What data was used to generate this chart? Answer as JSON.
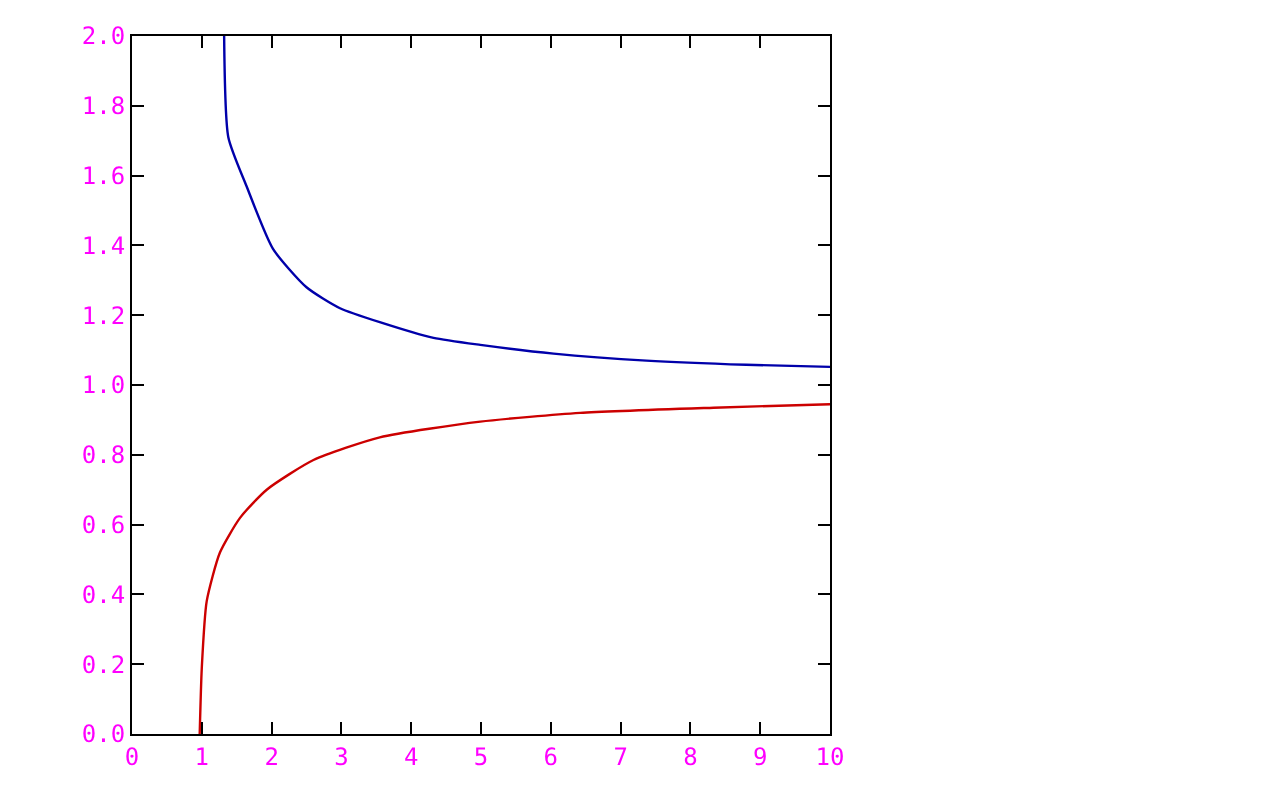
{
  "chart_data": {
    "type": "line",
    "xlim": [
      0,
      10
    ],
    "ylim": [
      0,
      2
    ],
    "xticks": [
      0,
      1,
      2,
      3,
      4,
      5,
      6,
      7,
      8,
      9,
      10
    ],
    "yticks": [
      {
        "value": 0,
        "label": "0.0"
      },
      {
        "value": 0.2,
        "label": "0.2"
      },
      {
        "value": 0.4,
        "label": "0.4"
      },
      {
        "value": 0.6,
        "label": "0.6"
      },
      {
        "value": 0.8,
        "label": "0.8"
      },
      {
        "value": 1,
        "label": "1.0"
      },
      {
        "value": 1.2,
        "label": "1.2"
      },
      {
        "value": 1.4,
        "label": "1.4"
      },
      {
        "value": 1.6,
        "label": "1.6"
      },
      {
        "value": 1.8,
        "label": "1.8"
      },
      {
        "value": 2,
        "label": "2.0"
      }
    ],
    "line_style": "solid",
    "series": [
      {
        "color": "#0000aa",
        "x": [
          1.32,
          1.38,
          1.64,
          2.02,
          2.5,
          2.98,
          3.55,
          4.32,
          4.99,
          6.04,
          7.37,
          8.8,
          10
        ],
        "values": [
          2,
          1.71,
          1.57,
          1.39,
          1.28,
          1.22,
          1.18,
          1.135,
          1.115,
          1.09,
          1.07,
          1.058,
          1.052
        ]
      },
      {
        "color": "#cc0000",
        "x": [
          0.97,
          1.0,
          1.07,
          1.26,
          1.55,
          1.93,
          2.6,
          3.55,
          4.99,
          6.42,
          8.33,
          10
        ],
        "values": [
          0,
          0.19,
          0.38,
          0.52,
          0.62,
          0.7,
          0.785,
          0.85,
          0.895,
          0.92,
          0.935,
          0.945
        ]
      }
    ]
  }
}
